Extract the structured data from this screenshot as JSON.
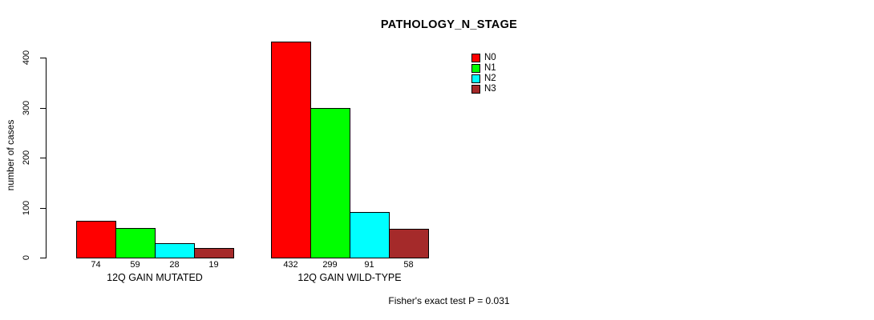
{
  "chart_data": {
    "type": "bar",
    "title": "PATHOLOGY_N_STAGE",
    "xlabel": "",
    "ylabel": "number of cases",
    "ylim": [
      0,
      440
    ],
    "yticks": [
      0,
      100,
      200,
      300,
      400
    ],
    "grid": false,
    "categories": [
      "12Q GAIN MUTATED",
      "12Q GAIN WILD-TYPE"
    ],
    "series": [
      {
        "name": "N0",
        "color": "#ff0000",
        "values": [
          74,
          432
        ]
      },
      {
        "name": "N1",
        "color": "#00ff00",
        "values": [
          59,
          299
        ]
      },
      {
        "name": "N2",
        "color": "#00ffff",
        "values": [
          28,
          91
        ]
      },
      {
        "name": "N3",
        "color": "#a52a2a",
        "values": [
          19,
          58
        ]
      }
    ],
    "bar_value_labels": [
      [
        74,
        59,
        28,
        19
      ],
      [
        432,
        299,
        91,
        58
      ]
    ],
    "legend_position": "top-right-inside",
    "annotation": "Fisher's exact test P = 0.031"
  }
}
